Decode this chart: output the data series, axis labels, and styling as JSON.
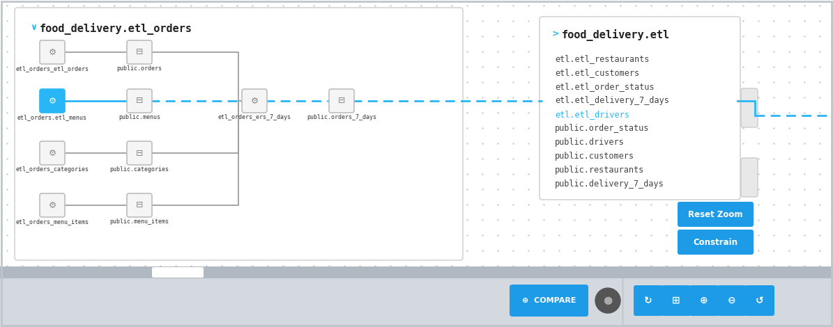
{
  "bg_color": "#d4d9e0",
  "main_panel_bg": "#ffffff",
  "right_panel_bg": "#ffffff",
  "main_title": "food_delivery.etl_orders",
  "right_title": "food_delivery.etl",
  "right_items": [
    "etl.etl_restaurants",
    "etl.etl_customers",
    "etl.etl_order_status",
    "etl.etl_delivery_7_days",
    "etl.etl_drivers",
    "public.order_status",
    "public.drivers",
    "public.customers",
    "public.restaurants",
    "public.delivery_7_days"
  ],
  "highlight_item_idx": 4,
  "highlight_edge_color": "#29b6f6",
  "normal_edge_color": "#9e9e9e",
  "node_border_normal": "#bdbdbd",
  "node_fill_normal": "#f5f5f5",
  "node_fill_highlight": "#29b6f6",
  "dot_color": "#c5cad1",
  "btn_color": "#1e9be6",
  "scrollbar_bg": "#9e9e9e",
  "scrollbar_indicator": "#ffffff",
  "bottom_toolbar_bg": "#d4d9e0",
  "bottom_scrollbar_bg": "#b0b8c1"
}
